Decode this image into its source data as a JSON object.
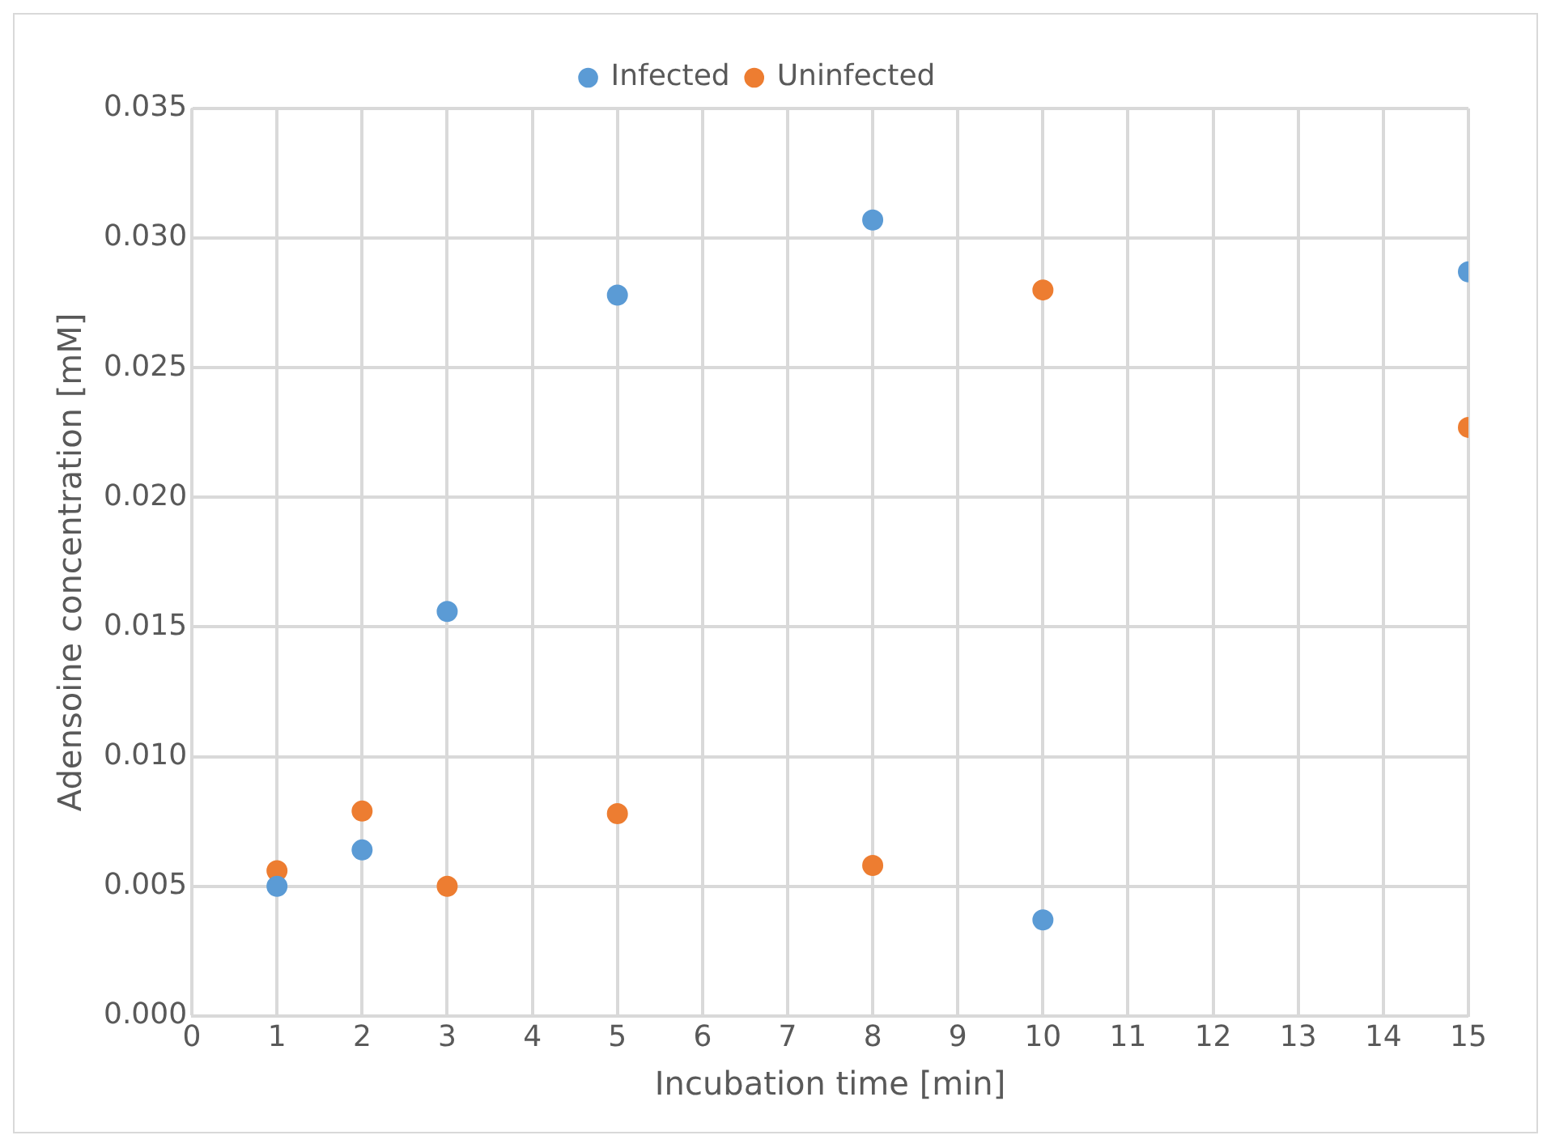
{
  "chart_data": {
    "type": "scatter",
    "xlabel": "Incubation time [min]",
    "ylabel": "Adensoine concentration [mM]",
    "x": [
      1,
      2,
      3,
      5,
      8,
      10,
      15
    ],
    "series": [
      {
        "name": "Infected",
        "color": "#5b9bd5",
        "values": [
          0.005,
          0.0064,
          0.0156,
          0.0278,
          0.0307,
          0.0037,
          0.0287
        ]
      },
      {
        "name": "Uninfected",
        "color": "#ed7d31",
        "values": [
          0.0056,
          0.0079,
          0.005,
          0.0078,
          0.0058,
          0.028,
          0.0227
        ]
      }
    ],
    "xlim": [
      0,
      15
    ],
    "xticks": [
      0,
      1,
      2,
      3,
      4,
      5,
      6,
      7,
      8,
      9,
      10,
      11,
      12,
      13,
      14,
      15
    ],
    "ylim": [
      0,
      0.035
    ],
    "yticks": [
      {
        "value": 0,
        "label": "0.000"
      },
      {
        "value": 0.005,
        "label": "0.005"
      },
      {
        "value": 0.01,
        "label": "0.010"
      },
      {
        "value": 0.015,
        "label": "0.015"
      },
      {
        "value": 0.02,
        "label": "0.020"
      },
      {
        "value": 0.025,
        "label": "0.025"
      },
      {
        "value": 0.03,
        "label": "0.030"
      },
      {
        "value": 0.035,
        "label": "0.035"
      }
    ],
    "grid": true,
    "legend": "top",
    "marker": "circle"
  }
}
